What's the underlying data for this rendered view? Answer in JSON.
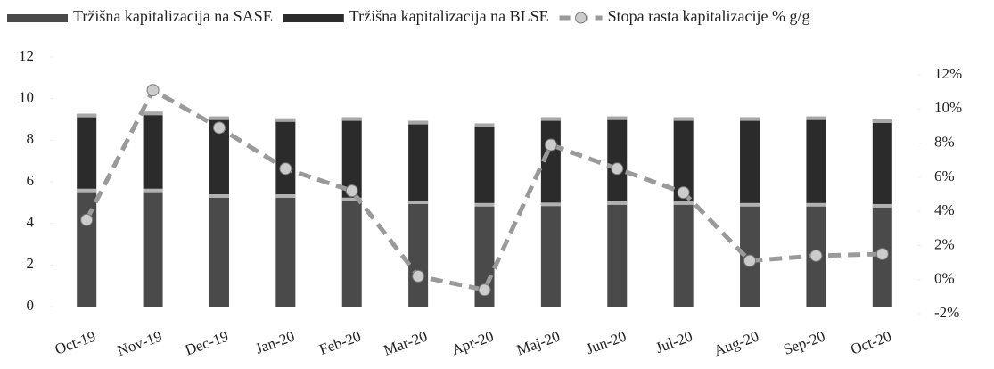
{
  "chart_data": {
    "type": "bar",
    "stacked": true,
    "categories": [
      "Oct-19",
      "Nov-19",
      "Dec-19",
      "Jan-20",
      "Feb-20",
      "Mar-20",
      "Apr-20",
      "Maj-20",
      "Jun-20",
      "Jul-20",
      "Aug-20",
      "Sep-20",
      "Oct-20"
    ],
    "series": [
      {
        "name": "Tržišna kapitalizacija na SASE",
        "type": "bar",
        "color": "#4a4a4a",
        "values": [
          5.67,
          5.67,
          5.4,
          5.4,
          5.24,
          5.1,
          4.98,
          5.0,
          5.06,
          5.06,
          4.98,
          4.98,
          4.93
        ]
      },
      {
        "name": "Tržišna kapitalizacija na BLSE",
        "type": "bar",
        "color": "#2b2b2b",
        "values": [
          3.6,
          3.7,
          3.74,
          3.65,
          3.86,
          3.83,
          3.82,
          4.1,
          4.08,
          4.04,
          4.12,
          4.16,
          4.07
        ]
      },
      {
        "name": "Stopa rasta kapitalizacije % g/g",
        "type": "line",
        "axis": "y2",
        "color": "#9a9a9a",
        "values": [
          3.5,
          11.1,
          8.9,
          6.5,
          5.2,
          0.2,
          -0.6,
          7.9,
          6.5,
          5.1,
          1.1,
          1.4,
          1.5
        ]
      }
    ],
    "ylim": [
      0,
      12
    ],
    "yticks": [
      0,
      2,
      4,
      6,
      8,
      10,
      12
    ],
    "y2lim": [
      -2,
      12
    ],
    "y2ticks": [
      {
        "value": -2,
        "label": "-2%"
      },
      {
        "value": 0,
        "label": "0%"
      },
      {
        "value": 2,
        "label": "2%"
      },
      {
        "value": 4,
        "label": "4%"
      },
      {
        "value": 6,
        "label": "6%"
      },
      {
        "value": 8,
        "label": "8%"
      },
      {
        "value": 10,
        "label": "10%"
      },
      {
        "value": 12,
        "label": "12%"
      }
    ],
    "legend": "top"
  }
}
